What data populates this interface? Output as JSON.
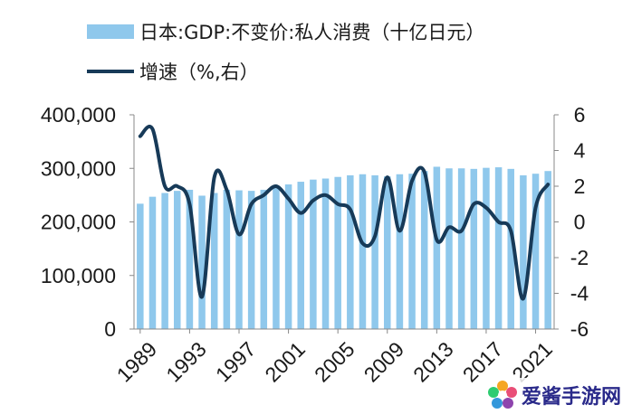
{
  "chart_data": {
    "type": "bar+line",
    "legend": {
      "bar_label": "日本:GDP:不变价:私人消费（十亿日元）",
      "line_label": "增速（%,右）"
    },
    "years": [
      1989,
      1990,
      1991,
      1992,
      1993,
      1994,
      1995,
      1996,
      1997,
      1998,
      1999,
      2000,
      2001,
      2002,
      2003,
      2004,
      2005,
      2006,
      2007,
      2008,
      2009,
      2010,
      2011,
      2012,
      2013,
      2014,
      2015,
      2016,
      2017,
      2018,
      2019,
      2020,
      2021,
      2022
    ],
    "x_tick_labels": [
      "1989",
      "1993",
      "1997",
      "2001",
      "2005",
      "2009",
      "2013",
      "2017",
      "2021"
    ],
    "x_tick_years": [
      1989,
      1993,
      1997,
      2001,
      2005,
      2009,
      2013,
      2017,
      2021
    ],
    "series": [
      {
        "name": "日本:GDP:不变价:私人消费（十亿日元）",
        "kind": "bar",
        "axis": "left",
        "values": [
          234000,
          247000,
          254000,
          258000,
          260000,
          249000,
          254000,
          260000,
          259000,
          258000,
          260000,
          264000,
          270000,
          275000,
          279000,
          281000,
          284000,
          287000,
          289000,
          287000,
          285000,
          289000,
          290000,
          295000,
          303000,
          300000,
          300000,
          299000,
          301000,
          302000,
          299000,
          287000,
          290000,
          295000
        ]
      },
      {
        "name": "增速（%,右）",
        "kind": "line",
        "axis": "right",
        "values": [
          4.8,
          5.2,
          2.0,
          2.0,
          1.0,
          -4.2,
          2.5,
          1.8,
          -0.7,
          1.0,
          1.5,
          2.0,
          1.3,
          0.5,
          1.2,
          1.5,
          1.0,
          0.7,
          -1.2,
          -0.8,
          2.5,
          -0.5,
          2.3,
          2.8,
          -1.0,
          -0.3,
          -0.5,
          1.0,
          0.8,
          0.0,
          -0.5,
          -4.3,
          0.8,
          2.1
        ]
      }
    ],
    "y_left": {
      "min": 0,
      "max": 400000,
      "ticks": [
        "0",
        "100,000",
        "200,000",
        "300,000",
        "400,000"
      ]
    },
    "y_right": {
      "min": -6,
      "max": 6,
      "ticks": [
        "-6",
        "-4",
        "-2",
        "0",
        "2",
        "4",
        "6"
      ]
    },
    "colors": {
      "bar": "#8fc8ec",
      "line": "#173a58",
      "axis": "#888888",
      "text": "#1a1a1a"
    },
    "watermark": "爱酱手游网"
  }
}
